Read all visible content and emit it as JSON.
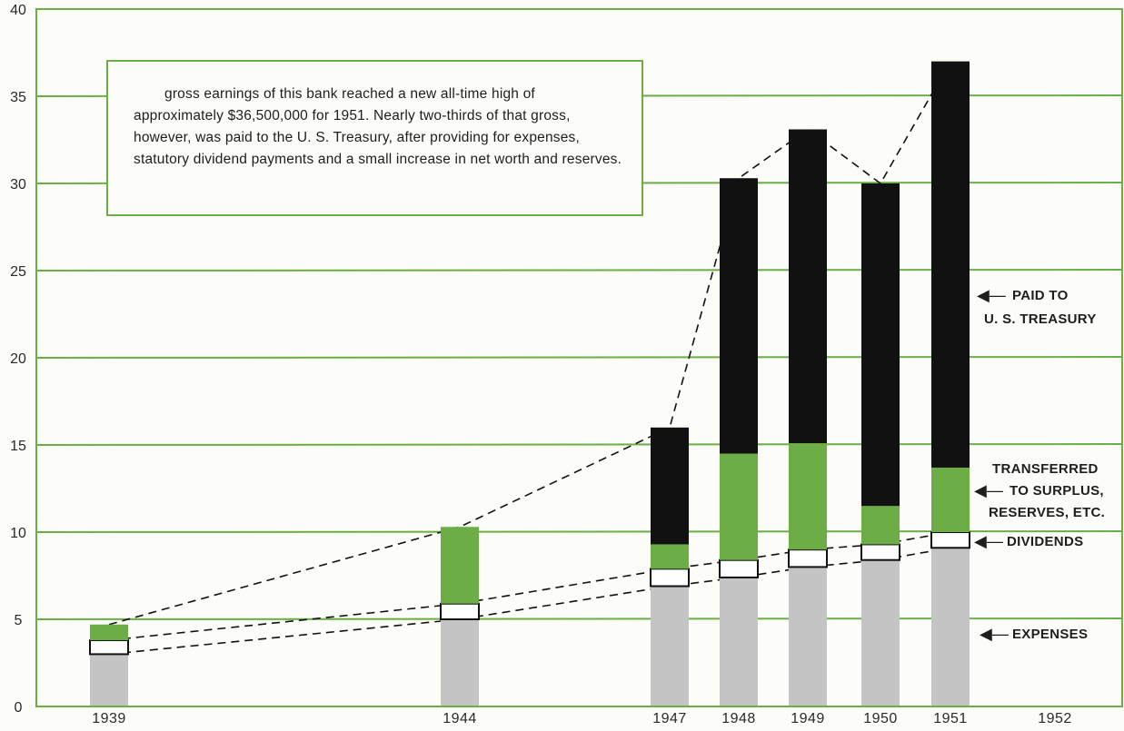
{
  "chart_data": {
    "type": "bar",
    "stacked": true,
    "unit_note": "",
    "ylim": [
      0,
      40
    ],
    "y_ticks": [
      0,
      5,
      10,
      15,
      20,
      25,
      30,
      35,
      40
    ],
    "x_ticks": [
      "1939",
      "1944",
      "1947",
      "1948",
      "1949",
      "1950",
      "1951",
      "1952"
    ],
    "categories": [
      "1939",
      "1944",
      "1947",
      "1948",
      "1949",
      "1950",
      "1951"
    ],
    "series": [
      {
        "name": "EXPENSES",
        "color": "#c4c4c4",
        "values": [
          3.0,
          5.0,
          6.9,
          7.4,
          8.0,
          8.4,
          9.1
        ]
      },
      {
        "name": "DIVIDENDS",
        "color": "#ffffff",
        "values": [
          0.8,
          0.9,
          1.0,
          1.0,
          1.0,
          0.9,
          0.9
        ]
      },
      {
        "name": "TRANSFERRED TO SURPLUS, RESERVES, ETC.",
        "color": "#6cae45",
        "values": [
          0.9,
          4.4,
          1.4,
          6.1,
          6.1,
          2.2,
          3.7
        ]
      },
      {
        "name": "PAID TO U. S. TREASURY",
        "color": "#111111",
        "values": [
          0.0,
          0.0,
          6.7,
          15.8,
          18.0,
          18.5,
          23.3
        ]
      }
    ],
    "grid": true,
    "grid_color": "#6cae45",
    "annotation": "gross earnings of this bank reached a new all-time high of approximately $36,500,000 for 1951. Nearly two-thirds of that gross, however, was paid to the U. S. Treasury, after providing for expenses, statutory dividend payments and a small increase in net worth and reserves.",
    "legend_labels": {
      "treasury_line1": "PAID TO",
      "treasury_line2": "U. S. TREASURY",
      "surplus_line1": "TRANSFERRED",
      "surplus_line2": "TO SURPLUS,",
      "surplus_line3": "RESERVES, ETC.",
      "dividends": "DIVIDENDS",
      "expenses": "EXPENSES"
    },
    "legend_placement": "right"
  }
}
